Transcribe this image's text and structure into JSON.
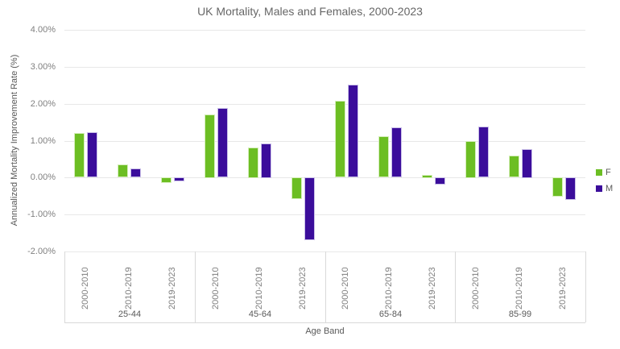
{
  "chart_data": {
    "type": "bar",
    "title": "UK Mortality, Males and Females, 2000-2023",
    "xlabel": "Age Band",
    "ylabel": "Annualized Mortality Improvement Rate (%)",
    "ylim": [
      -2,
      4
    ],
    "grid": true,
    "legend_position": "right",
    "yticks": [
      {
        "value": 4,
        "label": "4.00%"
      },
      {
        "value": 3,
        "label": "3.00%"
      },
      {
        "value": 2,
        "label": "2.00%"
      },
      {
        "value": 1,
        "label": "1.00%"
      },
      {
        "value": 0,
        "label": "0.00%"
      },
      {
        "value": -1,
        "label": "-1.00%"
      },
      {
        "value": -2,
        "label": "-2.00%"
      }
    ],
    "groups": [
      "25-44",
      "45-64",
      "65-84",
      "85-99"
    ],
    "periods": [
      "2000-2010",
      "2010-2019",
      "2019-2023"
    ],
    "series": [
      {
        "name": "F",
        "color": "#6CBE23",
        "border_color": "#d6eebb",
        "values": [
          [
            1.2,
            0.35,
            -0.15
          ],
          [
            1.72,
            0.82,
            -0.58
          ],
          [
            2.08,
            1.12,
            0.08
          ],
          [
            1.0,
            0.6,
            -0.52
          ]
        ]
      },
      {
        "name": "M",
        "color": "#3B0D9B",
        "border_color": "#c9bfe8",
        "values": [
          [
            1.22,
            0.24,
            -0.1
          ],
          [
            1.88,
            0.93,
            -1.7
          ],
          [
            2.52,
            1.35,
            -0.2
          ],
          [
            1.38,
            0.78,
            -0.62
          ]
        ]
      }
    ],
    "colors": {
      "title": "#666666",
      "tick_label": "#808080",
      "axis_title": "#595959",
      "gridline": "#e8e8e8",
      "divider": "#d9d9d9",
      "background": "#ffffff"
    }
  }
}
